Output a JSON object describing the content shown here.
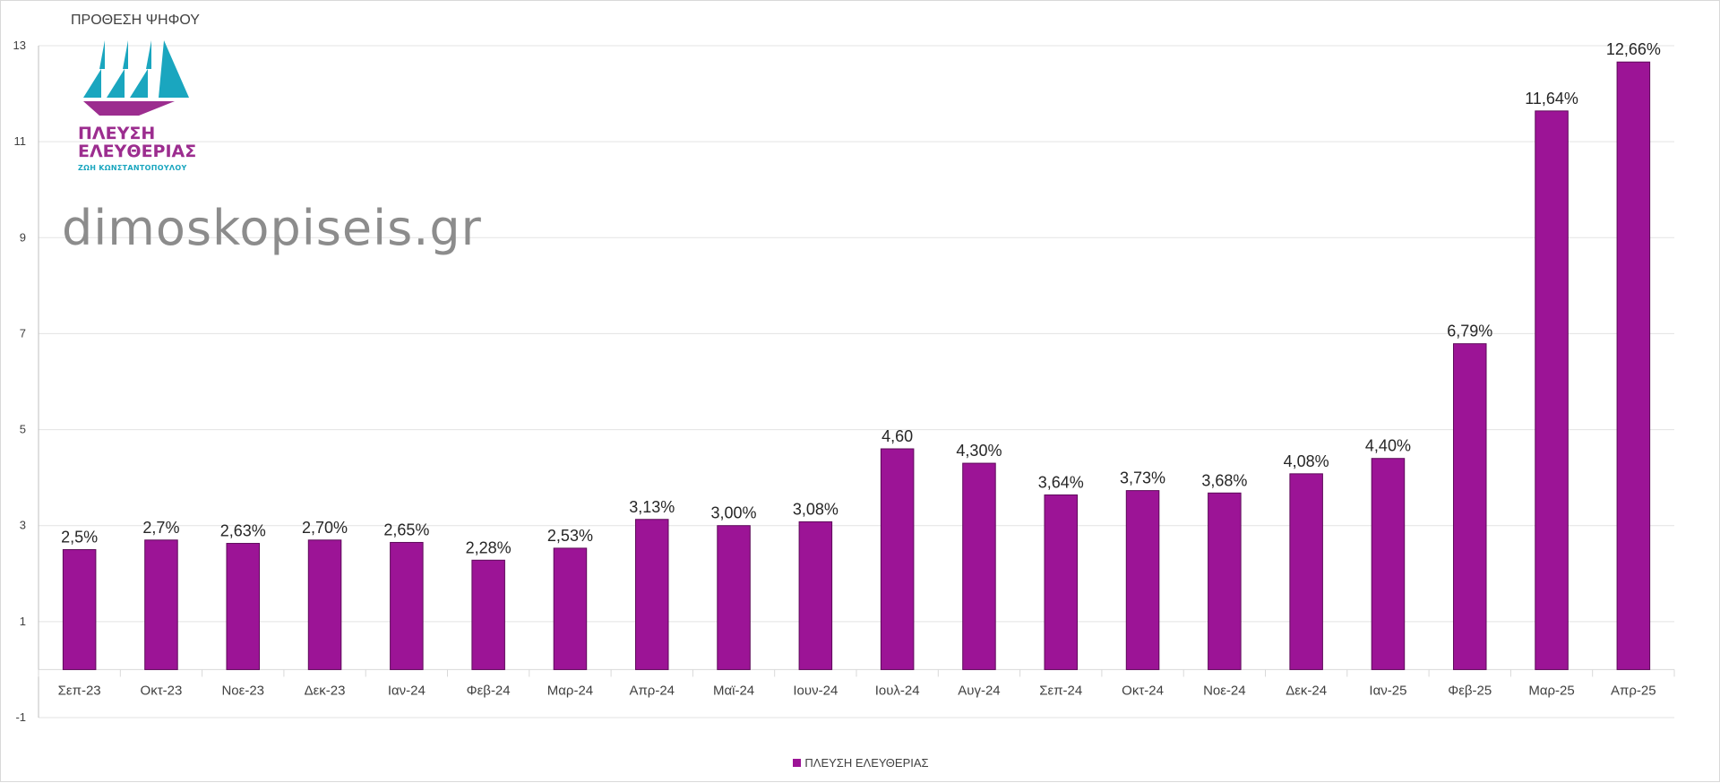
{
  "chart_data": {
    "type": "bar",
    "title": "ΠΡΟΘΕΣΗ ΨΗΦΟΥ",
    "categories": [
      "Σεπ-23",
      "Οκτ-23",
      "Νοε-23",
      "Δεκ-23",
      "Ιαν-24",
      "Φεβ-24",
      "Μαρ-24",
      "Απρ-24",
      "Μαϊ-24",
      "Ιουν-24",
      "Ιουλ-24",
      "Αυγ-24",
      "Σεπ-24",
      "Οκτ-24",
      "Νοε-24",
      "Δεκ-24",
      "Ιαν-25",
      "Φεβ-25",
      "Μαρ-25",
      "Απρ-25"
    ],
    "series": [
      {
        "name": "ΠΛΕΥΣΗ ΕΛΕΥΘΕΡΙΑΣ",
        "color": "#9c1496",
        "values": [
          2.5,
          2.7,
          2.63,
          2.7,
          2.65,
          2.28,
          2.53,
          3.13,
          3.0,
          3.08,
          4.6,
          4.3,
          3.64,
          3.73,
          3.68,
          4.08,
          4.4,
          6.79,
          11.64,
          12.66
        ],
        "labels": [
          "2,5%",
          "2,7%",
          "2,63%",
          "2,70%",
          "2,65%",
          "2,28%",
          "2,53%",
          "3,13%",
          "3,00%",
          "3,08%",
          "4,60",
          "4,30%",
          "3,64%",
          "3,73%",
          "3,68%",
          "4,08%",
          "4,40%",
          "6,79%",
          "11,64%",
          "12,66%"
        ]
      }
    ],
    "ylim": [
      -1,
      13
    ],
    "yticks": [
      -1,
      1,
      3,
      5,
      7,
      9,
      11,
      13
    ],
    "grid": true,
    "legend_position": "bottom"
  },
  "logo": {
    "name": "ΠΛΕΥΣΗ\nΕΛΕΥΘΕΡΙΑΣ",
    "subtitle": "ΖΩΗ ΚΩΝΣΤΑΝΤΟΠΟΥΛΟΥ",
    "sail_color": "#1aa6bf",
    "hull_color": "#9c2d8f"
  },
  "watermark": "dimoskopiseis.gr"
}
